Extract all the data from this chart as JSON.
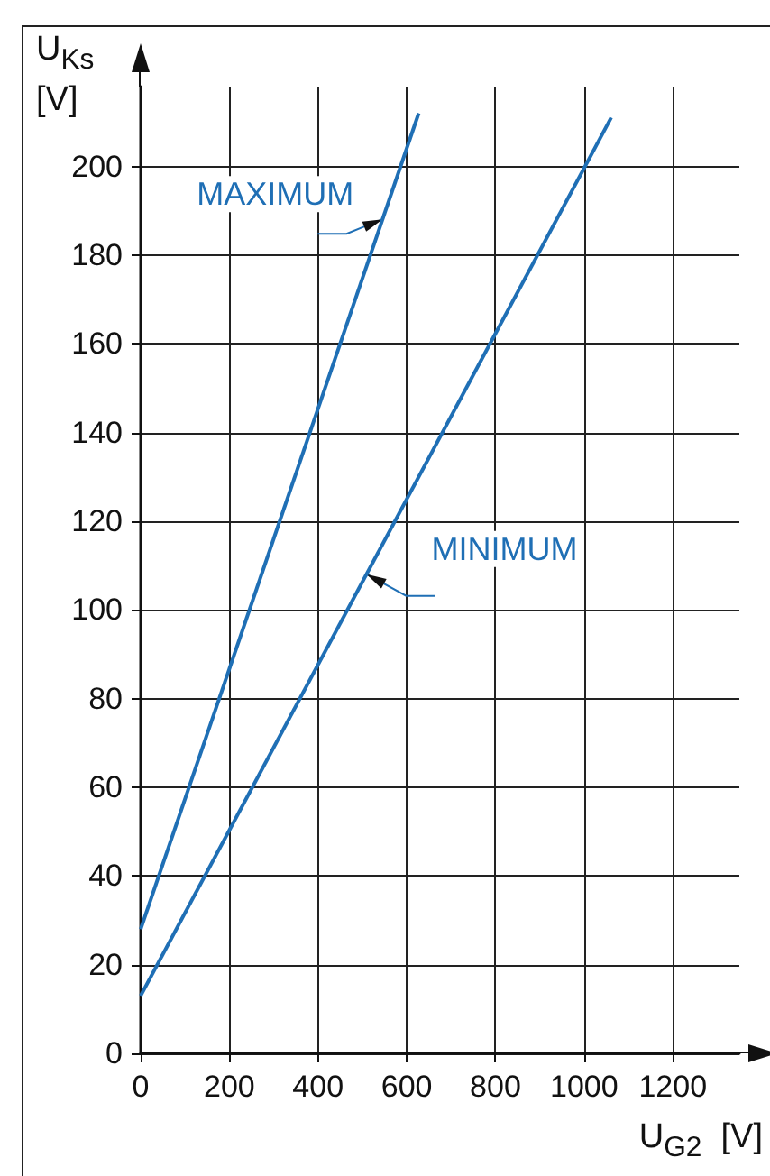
{
  "chart_data": {
    "type": "line",
    "xlabel": "U$_{G2}$  [V]",
    "ylabel": "U$_{Ks}$\n[V]",
    "series": [
      {
        "name": "MAXIMUM",
        "color": "#1f6fb5",
        "x": [
          0,
          627
        ],
        "values": [
          28,
          212
        ]
      },
      {
        "name": "MINIMUM",
        "color": "#1f6fb5",
        "x": [
          0,
          1061
        ],
        "values": [
          13,
          211
        ]
      }
    ],
    "xlim": [
      0,
      1350
    ],
    "xticks": [
      0,
      200,
      400,
      600,
      800,
      1000,
      1200
    ],
    "ylim": [
      0,
      218
    ],
    "yticks": [
      0,
      20,
      40,
      60,
      80,
      100,
      120,
      140,
      160,
      180,
      200
    ],
    "grid": true,
    "legend": false,
    "marker": "none",
    "line_style": "solid"
  }
}
